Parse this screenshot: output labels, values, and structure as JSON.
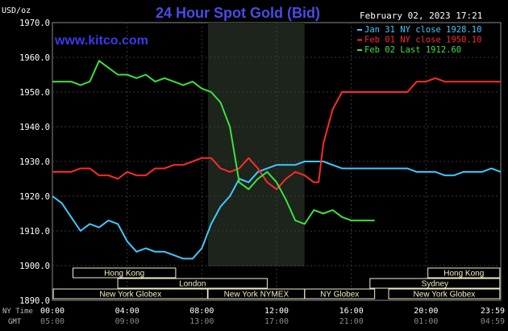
{
  "chart_data": {
    "type": "line",
    "title": "24 Hour Spot Gold (Bid)",
    "ylabel": "USD/oz",
    "watermark": "www.kitco.com",
    "date": "February 02, 2023 17:21",
    "ylim": [
      1890,
      1970
    ],
    "y_ticks": [
      "1970.0",
      "1960.0",
      "1950.0",
      "1940.0",
      "1930.0",
      "1920.0",
      "1910.0",
      "1900.0",
      "1890.0"
    ],
    "x_label_ny": "NY Time",
    "x_label_gmt": "GMT",
    "x_ticks_ny": [
      "00:00",
      "04:00",
      "08:00",
      "12:00",
      "16:00",
      "20:00",
      "23:59"
    ],
    "x_ticks_gmt": [
      "05:00",
      "09:00",
      "13:00",
      "17:00",
      "21:00",
      "01:00",
      "04:59"
    ],
    "legend": [
      "Jan 31 NY close 1928.10",
      "Feb 01 NY close 1950.10",
      "Feb 02 Last 1912.60"
    ],
    "colors": {
      "blue": "#40c8ff",
      "red": "#ff2a2a",
      "green": "#3ee03e",
      "title": "#4a4ae8",
      "watermark": "#3a3af0",
      "session_bg": "#1c241c",
      "session_fill": "#f2eec8",
      "grid": "#3a3a3a"
    },
    "sessions": {
      "hong_kong": "Hong Kong",
      "london": "London",
      "new_york_globex": "New York Globex",
      "new_york_nymex": "New York NYMEX",
      "ny_globex": "NY Globex",
      "sydney": "Sydney"
    },
    "series": [
      {
        "name": "Jan 31 NY close 1928.10",
        "color": "#40c8ff",
        "x": [
          0,
          0.5,
          1,
          1.5,
          2,
          2.5,
          3,
          3.5,
          4,
          4.5,
          5,
          5.5,
          6,
          6.5,
          7,
          7.5,
          8,
          8.5,
          9,
          9.5,
          10,
          10.5,
          11,
          11.5,
          12,
          12.5,
          13,
          13.5,
          14,
          14.5,
          15,
          15.5,
          16,
          16.5,
          17,
          17.5,
          18,
          18.5,
          19,
          19.5,
          20,
          20.5,
          21,
          21.5,
          22,
          22.5,
          23,
          23.5,
          24
        ],
        "values": [
          1920,
          1918,
          1914,
          1910,
          1912,
          1911,
          1913,
          1912,
          1907,
          1904,
          1905,
          1904,
          1904,
          1903,
          1902,
          1902,
          1905,
          1912,
          1917,
          1920,
          1925,
          1924,
          1927,
          1928,
          1929,
          1929,
          1929,
          1930,
          1930,
          1930,
          1929,
          1928,
          1928,
          1928,
          1928,
          1928,
          1928,
          1928,
          1928,
          1927,
          1927,
          1927,
          1926,
          1926,
          1927,
          1927,
          1927,
          1928,
          1927
        ]
      },
      {
        "name": "Feb 01 NY close 1950.10",
        "color": "#ff2a2a",
        "x": [
          0,
          0.5,
          1,
          1.5,
          2,
          2.5,
          3,
          3.5,
          4,
          4.5,
          5,
          5.5,
          6,
          6.5,
          7,
          7.5,
          8,
          8.5,
          9,
          9.5,
          10,
          10.5,
          11,
          11.5,
          12,
          12.5,
          13,
          13.5,
          14,
          14.25,
          14.5,
          15,
          15.5,
          16,
          16.5,
          17,
          17.5,
          18,
          18.5,
          19,
          19.5,
          20,
          20.5,
          21,
          21.5,
          22,
          22.5,
          23,
          23.5,
          24
        ],
        "values": [
          1927,
          1927,
          1927,
          1928,
          1928,
          1926,
          1926,
          1925,
          1927,
          1926,
          1926,
          1928,
          1928,
          1929,
          1929,
          1930,
          1931,
          1931,
          1928,
          1927,
          1928,
          1931,
          1928,
          1924,
          1922,
          1925,
          1927,
          1926,
          1924,
          1924,
          1935,
          1945,
          1950,
          1950,
          1950,
          1950,
          1950,
          1950,
          1950,
          1950,
          1953,
          1953,
          1954,
          1953,
          1953,
          1953,
          1953,
          1953,
          1953,
          1953
        ]
      },
      {
        "name": "Feb 02 Last 1912.60",
        "color": "#3ee03e",
        "x": [
          0,
          0.5,
          1,
          1.5,
          2,
          2.5,
          3,
          3.5,
          4,
          4.5,
          5,
          5.5,
          6,
          6.5,
          7,
          7.5,
          8,
          8.5,
          9,
          9.5,
          10,
          10.5,
          11,
          11.5,
          12,
          12.5,
          13,
          13.5,
          14,
          14.5,
          15,
          15.5,
          16,
          16.5,
          17,
          17.25
        ],
        "values": [
          1953,
          1953,
          1953,
          1952,
          1953,
          1959,
          1957,
          1955,
          1955,
          1954,
          1955,
          1953,
          1954,
          1953,
          1952,
          1953,
          1951,
          1950,
          1947,
          1940,
          1924,
          1922,
          1925,
          1927,
          1924,
          1919,
          1913,
          1912,
          1916,
          1915,
          1916,
          1914,
          1913,
          1913,
          1913,
          1913
        ]
      }
    ]
  }
}
